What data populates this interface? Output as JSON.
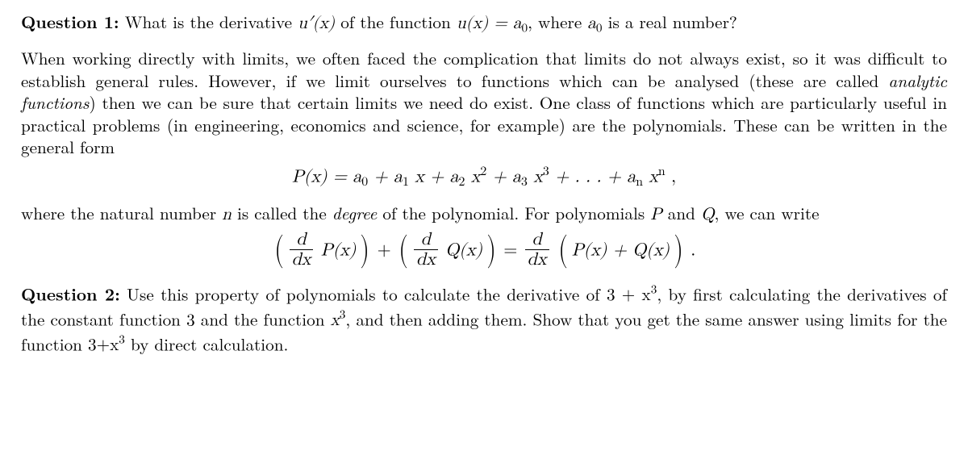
{
  "q1": {
    "label": "Question 1:",
    "before": "What is the derivative ",
    "deriv": "u′(x)",
    "mid1": " of the function ",
    "eq": "u(x) = a",
    "sub0": "0",
    "mid2": ", where ",
    "a0": "a",
    "a0sub": "0",
    "after": " is a real number?"
  },
  "intro": {
    "p1a": "When working directly with limits, we often faced the complication that limits do not always exist, so it was difficult to establish general rules. However, if we limit ourselves to functions which can be analysed (these are called ",
    "p1i": "analytic functions",
    "p1b": ") then we can be sure that certain limits we need do exist. One class of functions which are particularly useful in practical problems (in engineering, economics and science, for example) are the polynomials. These can be written in the general form"
  },
  "poly": {
    "lhs": "P(x) = a",
    "s0": "0",
    "plus": " + a",
    "s1": "1",
    "x1": " x + a",
    "s2": "2",
    "x2": " x",
    "e2": "2",
    "pa3": " + a",
    "s3": "3",
    "x3": " x",
    "e3": "3",
    "dots": " + . . . + a",
    "sn": "n",
    "xn": " x",
    "en": "n",
    "comma": " ,"
  },
  "degree": {
    "a": "where the natural number ",
    "n": "n",
    "b": " is called the ",
    "deg": "degree",
    "c": " of the polynomial. For polynomials ",
    "P": "P",
    "and": " and ",
    "Q": "Q",
    "d": ", we can write"
  },
  "sumrule": {
    "d": "d",
    "dx": "dx",
    "Px": "P(x)",
    "Qx": "Q(x)",
    "plus": " + ",
    "eq": " = ",
    "sum": "P(x) + Q(x)",
    "dot": " ."
  },
  "q2": {
    "label": "Question 2:",
    "a": "Use this property of polynomials to calculate the derivative of ",
    "expr1": "3 + x",
    "e3a": "3",
    "b": ", by first calculating the derivatives of the constant function ",
    "three": "3",
    "c": " and the function ",
    "x3": "x",
    "e3b": "3",
    "d": ", and then adding them. Show that you get the same answer using limits for the function ",
    "expr2": "3+x",
    "e3c": "3",
    "e": " by direct calculation."
  }
}
